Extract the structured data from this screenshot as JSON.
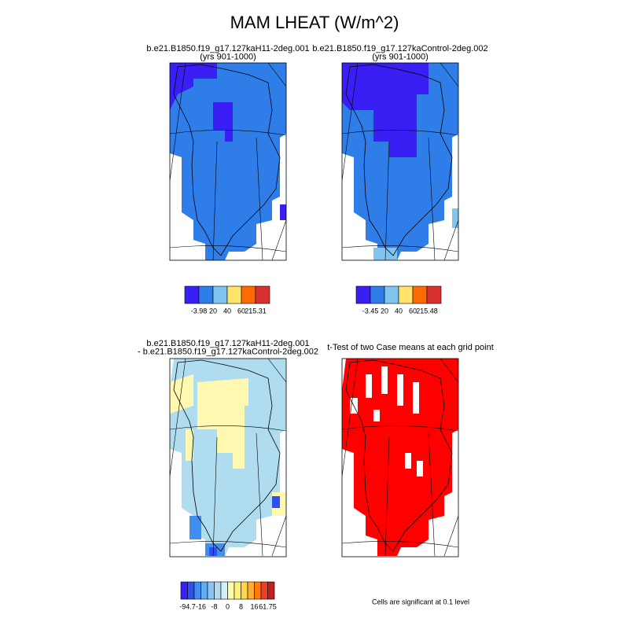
{
  "title": "MAM LHEAT (W/m^2)",
  "panels": [
    {
      "title": [
        "b.e21.B1850.f19_g17.127kaH11-2deg.001",
        "(yrs 901-1000)"
      ],
      "colorbar": {
        "colors": [
          "#3a1ff5",
          "#2e7de8",
          "#80c4f0",
          "#ffe36b",
          "#ff6a00",
          "#d93030"
        ],
        "labels": [
          "-3.98",
          "20",
          "40",
          "60",
          "215.31"
        ]
      }
    },
    {
      "title": [
        "b.e21.B1850.f19_g17.127kaControl-2deg.002",
        "(yrs 901-1000)"
      ],
      "colorbar": {
        "colors": [
          "#3a1ff5",
          "#2e7de8",
          "#80c4f0",
          "#ffe36b",
          "#ff6a00",
          "#d93030"
        ],
        "labels": [
          "-3.45",
          "20",
          "40",
          "60",
          "215.48"
        ]
      }
    },
    {
      "title": [
        "b.e21.B1850.f19_g17.127kaH11-2deg.001",
        "- b.e21.B1850.f19_g17.127kaControl-2deg.002"
      ],
      "colorbar": {
        "colors": [
          "#3a1ff5",
          "#2e50f0",
          "#3f8ef0",
          "#62aaf2",
          "#8cc6f0",
          "#b0dcf0",
          "#d2eef6",
          "#fff8b0",
          "#fff07a",
          "#ffd84a",
          "#ffae30",
          "#ff7a10",
          "#e84020",
          "#c02020"
        ],
        "labels": [
          "-94.7",
          "-16",
          "-8",
          "0",
          "8",
          "16",
          "61.75"
        ]
      }
    },
    {
      "title": [
        "t-Test of two Case means at each grid point"
      ],
      "note": "Cells are significant at 0.1 level"
    }
  ]
}
